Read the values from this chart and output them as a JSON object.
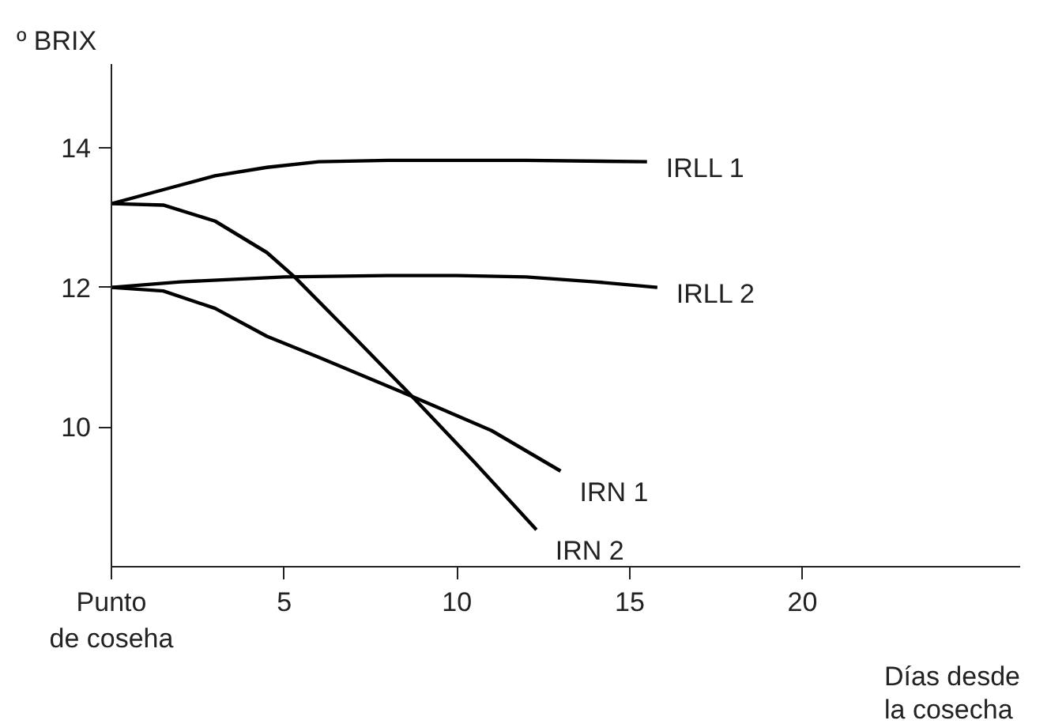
{
  "chart_data": {
    "type": "line",
    "ylabel": "º BRIX",
    "xlabel": "Días desde\nla cosecha",
    "xlim": [
      0,
      26.3
    ],
    "ylim": [
      8,
      15.2
    ],
    "xticks": [
      {
        "value": 0,
        "label": "Punto\nde coseha"
      },
      5,
      10,
      15,
      20
    ],
    "yticks": [
      10,
      12,
      14
    ],
    "grid": false,
    "marker": "none",
    "line_style": "solid",
    "series": [
      {
        "name": "IRLL 1",
        "color": "#000000",
        "x": [
          0,
          1.5,
          3,
          4.5,
          6,
          8,
          10,
          12,
          15.5
        ],
        "values": [
          13.2,
          13.4,
          13.6,
          13.72,
          13.8,
          13.82,
          13.82,
          13.82,
          13.8
        ]
      },
      {
        "name": "IRLL 2",
        "color": "#000000",
        "x": [
          0,
          2,
          5,
          8,
          10,
          12,
          14,
          15.8
        ],
        "values": [
          12.0,
          12.08,
          12.15,
          12.17,
          12.17,
          12.15,
          12.08,
          12.0
        ]
      },
      {
        "name": "IRN 1",
        "color": "#000000",
        "x": [
          0,
          1.5,
          3,
          4.5,
          6,
          8.7,
          11,
          13.0
        ],
        "values": [
          12.0,
          11.95,
          11.7,
          11.3,
          11.0,
          10.44,
          9.95,
          9.37
        ]
      },
      {
        "name": "IRN 2",
        "color": "#000000",
        "x": [
          0,
          1.5,
          3,
          4.5,
          5.3,
          7,
          8.7,
          10.5,
          12.3
        ],
        "values": [
          13.2,
          13.18,
          12.95,
          12.5,
          12.15,
          11.3,
          10.44,
          9.5,
          8.53
        ]
      }
    ]
  }
}
